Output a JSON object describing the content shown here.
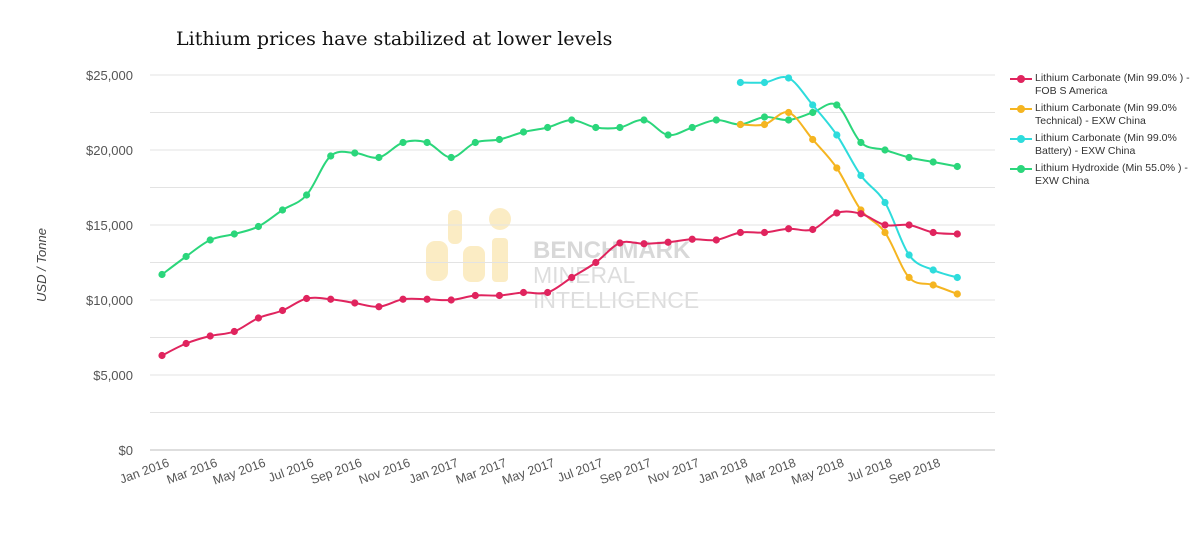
{
  "title": "Lithium prices have stabilized at lower levels",
  "watermark": {
    "line1": "BENCHMARK",
    "line2": "MINERAL",
    "line3": "INTELLIGENCE"
  },
  "chart_data": {
    "type": "line",
    "title": "Lithium prices have stabilized at lower levels",
    "xlabel": "",
    "ylabel": "USD / Tonne",
    "ylim": [
      0,
      25000
    ],
    "y_ticks": [
      "$0",
      "$5,000",
      "$10,000",
      "$15,000",
      "$20,000",
      "$25,000"
    ],
    "grid": true,
    "legend_position": "right",
    "x": [
      "Jan 2016",
      "Feb 2016",
      "Mar 2016",
      "Apr 2016",
      "May 2016",
      "Jun 2016",
      "Jul 2016",
      "Aug 2016",
      "Sep 2016",
      "Oct 2016",
      "Nov 2016",
      "Dec 2016",
      "Jan 2017",
      "Feb 2017",
      "Mar 2017",
      "Apr 2017",
      "May 2017",
      "Jun 2017",
      "Jul 2017",
      "Aug 2017",
      "Sep 2017",
      "Oct 2017",
      "Nov 2017",
      "Dec 2017",
      "Jan 2018",
      "Feb 2018",
      "Mar 2018",
      "Apr 2018",
      "May 2018",
      "Jun 2018",
      "Jul 2018",
      "Aug 2018",
      "Sep 2018",
      "Oct 2018"
    ],
    "x_tick_labels": [
      "Jan 2016",
      "Mar 2016",
      "May 2016",
      "Jul 2016",
      "Sep 2016",
      "Nov 2016",
      "Jan 2017",
      "Mar 2017",
      "May 2017",
      "Jul 2017",
      "Sep 2017",
      "Nov 2017",
      "Jan 2018",
      "Mar 2018",
      "May 2018",
      "Jul 2018",
      "Sep 2018"
    ],
    "series": [
      {
        "name": "Lithium Carbonate (Min 99.0% ) - FOB S America",
        "color": "#e0245e",
        "values": [
          6300,
          7100,
          7600,
          7900,
          8800,
          9300,
          10100,
          10050,
          9800,
          9550,
          10050,
          10050,
          10000,
          10300,
          10300,
          10500,
          10500,
          11500,
          12500,
          13800,
          13750,
          13850,
          14050,
          14000,
          14500,
          14500,
          14750,
          14700,
          15800,
          15750,
          15000,
          15000,
          14500,
          14400
        ]
      },
      {
        "name": "Lithium Carbonate (Min 99.0% Technical) - EXW China",
        "color": "#f5b521",
        "values": [
          null,
          null,
          null,
          null,
          null,
          null,
          null,
          null,
          null,
          null,
          null,
          null,
          null,
          null,
          null,
          null,
          null,
          null,
          null,
          null,
          null,
          null,
          null,
          null,
          21700,
          21700,
          22500,
          20700,
          18800,
          16000,
          14500,
          11500,
          11000,
          10400
        ]
      },
      {
        "name": "Lithium Carbonate (Min 99.0% Battery) - EXW China",
        "color": "#2edcdc",
        "values": [
          null,
          null,
          null,
          null,
          null,
          null,
          null,
          null,
          null,
          null,
          null,
          null,
          null,
          null,
          null,
          null,
          null,
          null,
          null,
          null,
          null,
          null,
          null,
          null,
          24500,
          24500,
          24800,
          23000,
          21000,
          18300,
          16500,
          13000,
          12000,
          11500
        ]
      },
      {
        "name": "Lithium Hydroxide (Min 55.0% ) - EXW China",
        "color": "#2bd67b",
        "values": [
          11700,
          12900,
          14000,
          14400,
          14900,
          16000,
          17000,
          19600,
          19800,
          19500,
          20500,
          20500,
          19500,
          20500,
          20700,
          21200,
          21500,
          22000,
          21500,
          21500,
          22000,
          21000,
          21500,
          22000,
          21700,
          22200,
          22000,
          22500,
          23000,
          20500,
          20000,
          19500,
          19200,
          18900
        ]
      }
    ]
  }
}
